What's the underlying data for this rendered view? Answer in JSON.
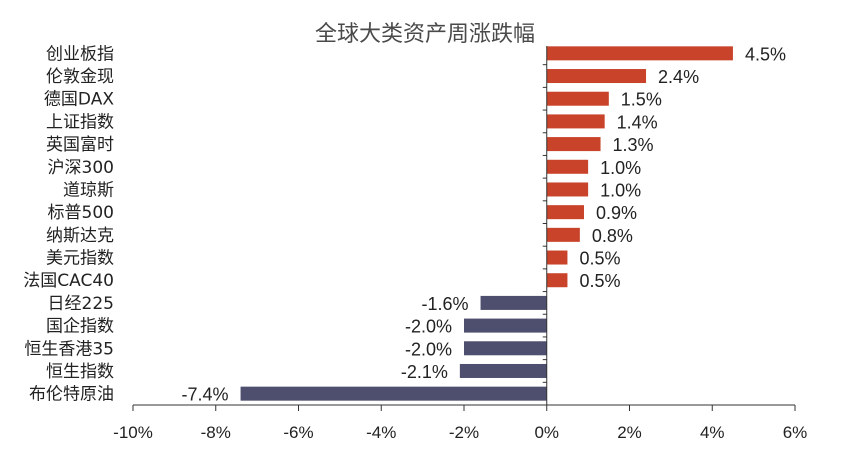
{
  "chart_data": {
    "type": "bar",
    "orientation": "horizontal",
    "title": "全球大类资产周涨跌幅",
    "categories": [
      "创业板指",
      "伦敦金现",
      "德国DAX",
      "上证指数",
      "英国富时",
      "沪深300",
      "道琼斯",
      "标普500",
      "纳斯达克",
      "美元指数",
      "法国CAC40",
      "日经225",
      "国企指数",
      "恒生香港35",
      "恒生指数",
      "布伦特原油"
    ],
    "values": [
      4.5,
      2.4,
      1.5,
      1.4,
      1.3,
      1.0,
      1.0,
      0.9,
      0.8,
      0.5,
      0.5,
      -1.6,
      -2.0,
      -2.0,
      -2.1,
      -7.4
    ],
    "value_labels": [
      "4.5%",
      "2.4%",
      "1.5%",
      "1.4%",
      "1.3%",
      "1.0%",
      "1.0%",
      "0.9%",
      "0.8%",
      "0.5%",
      "0.5%",
      "-1.6%",
      "-2.0%",
      "-2.0%",
      "-2.1%",
      "-7.4%"
    ],
    "xlim": [
      -10,
      6
    ],
    "xticks": [
      -10,
      -8,
      -6,
      -4,
      -2,
      0,
      2,
      4,
      6
    ],
    "xtick_labels": [
      "-10%",
      "-8%",
      "-6%",
      "-4%",
      "-2%",
      "0%",
      "2%",
      "4%",
      "6%"
    ],
    "xlabel": "",
    "ylabel": "",
    "grid": false,
    "legend": "none",
    "colors": {
      "positive": "#c8432a",
      "negative": "#4e4e6e",
      "axis": "#333333"
    }
  }
}
